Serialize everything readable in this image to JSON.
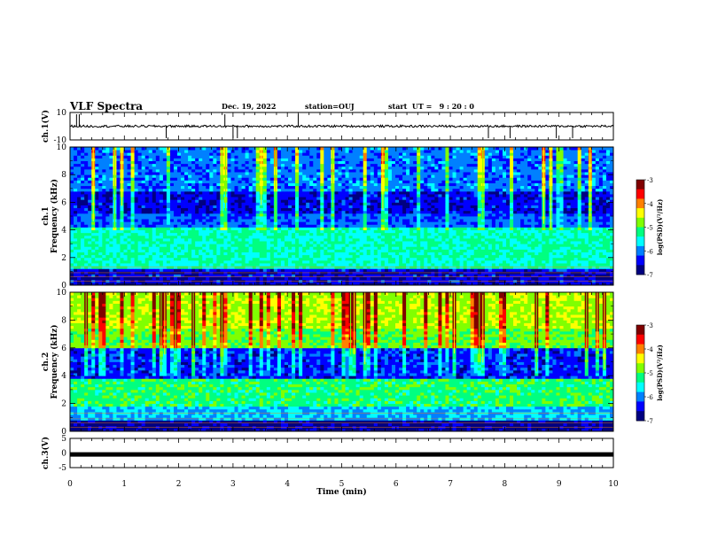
{
  "header": {
    "title": "VLF Spectra",
    "date": "Dec. 19, 2022",
    "station": "station=OUJ",
    "start": "start  UT =   9 : 20 : 0"
  },
  "colors": {
    "background": "#ffffff",
    "axis": "#000000",
    "colormap": [
      "#000080",
      "#0000ff",
      "#0080ff",
      "#00ffff",
      "#00ff80",
      "#80ff00",
      "#ffff00",
      "#ff8000",
      "#ff0000",
      "#800000"
    ]
  },
  "chart_data": [
    {
      "type": "line",
      "id": "waveform-ch1",
      "ylabel": "ch.1(V)",
      "ylim": [
        -10,
        10
      ],
      "yticks": [
        "10",
        "-10"
      ],
      "xlim": [
        0,
        10
      ],
      "baseline": 0,
      "spikes_min": [
        0.12,
        0.17,
        1.77,
        2.85,
        3.0,
        3.08,
        4.2,
        7.7,
        8.1,
        8.95,
        9.25
      ]
    },
    {
      "type": "heatmap",
      "id": "spectrogram-ch1",
      "ylabel_line1": "ch.1",
      "ylabel_line2": "Frequency (kHz)",
      "ylim": [
        0,
        10
      ],
      "yticks": [
        "0",
        "2",
        "4",
        "6",
        "8",
        "10"
      ],
      "xlim": [
        0,
        10
      ],
      "colorbar": {
        "label": "log(PSD)(V²/Hz)",
        "range": [
          -7,
          -3
        ],
        "ticks": [
          "-3",
          "-4",
          "-5",
          "-6",
          "-7"
        ]
      }
    },
    {
      "type": "heatmap",
      "id": "spectrogram-ch2",
      "ylabel_line1": "ch.2",
      "ylabel_line2": "Frequency (kHz)",
      "ylim": [
        0,
        10
      ],
      "yticks": [
        "0",
        "2",
        "4",
        "6",
        "8",
        "10"
      ],
      "xlim": [
        0,
        10
      ],
      "colorbar": {
        "label": "log(PSD)(V²/Hz)",
        "range": [
          -7,
          -3
        ],
        "ticks": [
          "-3",
          "-4",
          "-5",
          "-6",
          "-7"
        ]
      }
    },
    {
      "type": "line",
      "id": "waveform-ch3",
      "ylabel": "ch.3(V)",
      "ylim": [
        -5,
        5
      ],
      "yticks": [
        "5",
        "0",
        "-5"
      ],
      "xlim": [
        0,
        10
      ],
      "baseline": -0.5,
      "xlabel": "Time  (min)",
      "xticks": [
        "0",
        "1",
        "2",
        "3",
        "4",
        "5",
        "6",
        "7",
        "8",
        "9",
        "10"
      ]
    }
  ]
}
